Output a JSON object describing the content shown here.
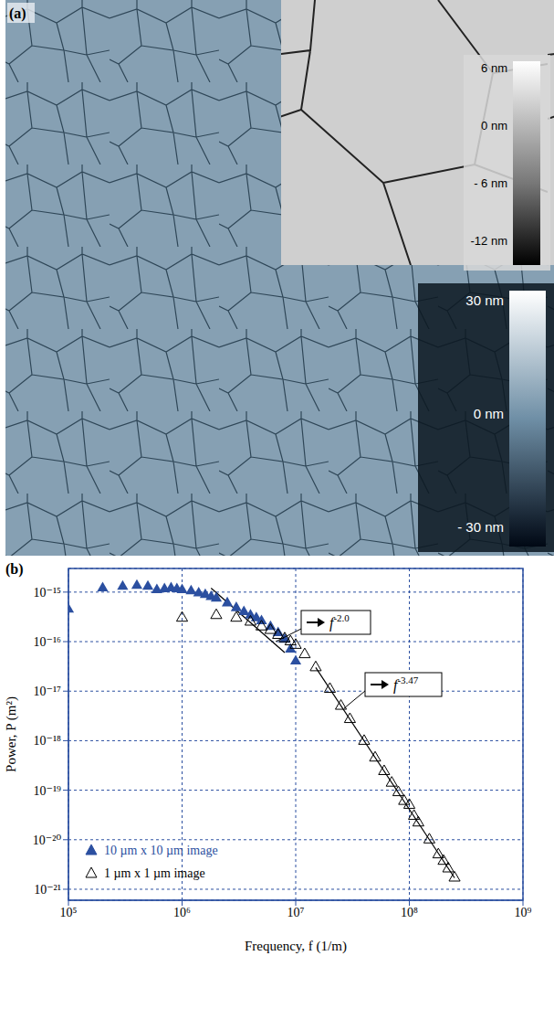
{
  "image_panel": {
    "label": "(a)",
    "colorbar": {
      "range": [
        -34.8,
        32.9
      ],
      "ticks": [
        {
          "value": 30,
          "label": "30 nm"
        },
        {
          "value": 0,
          "label": "0 nm"
        },
        {
          "value": -30,
          "label": "- 30 nm"
        }
      ]
    },
    "inset_colorbar": {
      "range": [
        -14.4,
        6.8
      ],
      "ticks": [
        {
          "value": 6,
          "label": "6 nm"
        },
        {
          "value": 0,
          "label": "0 nm"
        },
        {
          "value": -6,
          "label": "- 6 nm"
        },
        {
          "value": -12,
          "label": "-12 nm"
        }
      ]
    }
  },
  "chart_data": {
    "type": "scatter",
    "panel_label": "(b)",
    "x_label": "Frequency, f (1/m)",
    "y_label": "Power, P (m²)",
    "log": true,
    "grid": true,
    "legend": "lower left",
    "xlim": [
      100000.0,
      1000000000.0
    ],
    "xticks": [
      {
        "value": 100000.0,
        "label": "10⁵"
      },
      {
        "value": 1000000.0,
        "label": "10⁶"
      },
      {
        "value": 10000000.0,
        "label": "10⁷"
      },
      {
        "value": 100000000.0,
        "label": "10⁸"
      },
      {
        "value": 1000000000.0,
        "label": "10⁹"
      }
    ],
    "ylim": [
      6e-22,
      3e-15
    ],
    "yticks": [
      {
        "value": 1e-21,
        "label": "10⁻²¹"
      },
      {
        "value": 1e-20,
        "label": "10⁻²⁰"
      },
      {
        "value": 1e-19,
        "label": "10⁻¹⁹"
      },
      {
        "value": 1e-18,
        "label": "10⁻¹⁸"
      },
      {
        "value": 1e-17,
        "label": "10⁻¹⁷"
      },
      {
        "value": 1e-16,
        "label": "10⁻¹⁶"
      },
      {
        "value": 1e-15,
        "label": "10⁻¹⁵"
      }
    ],
    "series": [
      {
        "name": "10 µm x 10 µm image",
        "color": "#2b4fa0",
        "marker": "triangle",
        "x": [
          100000.0,
          200000.0,
          300000.0,
          400000.0,
          500000.0,
          600000.0,
          700000.0,
          800000.0,
          900000.0,
          1000000.0,
          1200000.0,
          1400000.0,
          1600000.0,
          1800000.0,
          2000000.0,
          2500000.0,
          3000000.0,
          3500000.0,
          4000000.0,
          4500000.0,
          5000000.0,
          6000000.0,
          7000000.0,
          8000000.0,
          9000000.0,
          10000000.0
        ],
        "values": [
          4.5e-16,
          1.2e-15,
          1.3e-15,
          1.35e-15,
          1.3e-15,
          1.1e-15,
          1.15e-15,
          1.2e-15,
          1.15e-15,
          1.1e-15,
          1.05e-15,
          9.5e-16,
          8.8e-16,
          8e-16,
          7.5e-16,
          6e-16,
          4.8e-16,
          4e-16,
          3.4e-16,
          3e-16,
          2.6e-16,
          2e-16,
          1.5e-16,
          1.1e-16,
          7e-17,
          4e-17
        ]
      },
      {
        "name": "1 µm x 1 µm image",
        "color": "#000000",
        "marker": "triangle-open",
        "x": [
          1000000.0,
          2000000.0,
          3000000.0,
          4000000.0,
          5000000.0,
          6000000.0,
          7000000.0,
          8000000.0,
          9000000.0,
          10000000.0,
          12000000.0,
          15000000.0,
          20000000.0,
          25000000.0,
          30000000.0,
          40000000.0,
          50000000.0,
          60000000.0,
          70000000.0,
          80000000.0,
          90000000.0,
          100000000.0,
          110000000.0,
          120000000.0,
          150000000.0,
          180000000.0,
          200000000.0,
          220000000.0,
          250000000.0
        ],
        "values": [
          3e-16,
          3.4e-16,
          3e-16,
          2.5e-16,
          2e-16,
          1.7e-16,
          1.35e-16,
          1.15e-16,
          1e-16,
          8.5e-17,
          5.5e-17,
          3e-17,
          1.1e-17,
          5e-18,
          2.7e-18,
          9.8e-19,
          4.5e-19,
          2.4e-19,
          1.4e-19,
          9e-20,
          6e-20,
          5e-20,
          3e-20,
          2.2e-20,
          1e-20,
          5e-21,
          3.7e-21,
          2.6e-21,
          1.7e-21
        ]
      }
    ],
    "annotations": [
      {
        "text": "f",
        "superscript": "-2.0",
        "color": "#000000",
        "x": [
          1800000.0,
          8000000.0
        ],
        "y": [
          1.2e-15,
          6e-17
        ]
      },
      {
        "text": "f",
        "superscript": "-3.47",
        "color": "#000000",
        "x": [
          15000000.0,
          250000000.0
        ],
        "y": [
          3e-17,
          1.7e-21
        ]
      }
    ]
  }
}
